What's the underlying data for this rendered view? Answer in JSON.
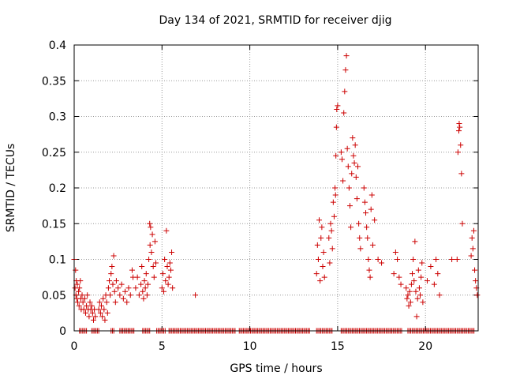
{
  "chart_data": {
    "type": "scatter",
    "title": "Day 134 of 2021, SRMTID for receiver djig",
    "xlabel": "GPS time / hours",
    "ylabel": "SRMTID / TECUs",
    "xlim": [
      0,
      23
    ],
    "ylim": [
      0,
      0.4
    ],
    "x_ticks": [
      0,
      5,
      10,
      15,
      20
    ],
    "x_tick_labels": [
      "0",
      "5",
      "10",
      "15",
      "20"
    ],
    "y_ticks": [
      0,
      0.05,
      0.1,
      0.15,
      0.2,
      0.25,
      0.3,
      0.35,
      0.4
    ],
    "y_tick_labels": [
      "0",
      "0.05",
      "0.1",
      "0.15",
      "0.2",
      "0.25",
      "0.3",
      "0.35",
      "0.4"
    ],
    "grid": true,
    "legend": "none",
    "marker": "plus",
    "color": "#cc0000",
    "series": [
      {
        "name": "SRMTID",
        "points": [
          [
            0.0,
            0.1
          ],
          [
            0.05,
            0.06
          ],
          [
            0.08,
            0.085
          ],
          [
            0.1,
            0.05
          ],
          [
            0.12,
            0.07
          ],
          [
            0.15,
            0.045
          ],
          [
            0.18,
            0.065
          ],
          [
            0.2,
            0.04
          ],
          [
            0.25,
            0.055
          ],
          [
            0.28,
            0.035
          ],
          [
            0.3,
            0.06
          ],
          [
            0.35,
            0.07
          ],
          [
            0.38,
            0.045
          ],
          [
            0.4,
            0.03
          ],
          [
            0.45,
            0.05
          ],
          [
            0.5,
            0.04
          ],
          [
            0.55,
            0.03
          ],
          [
            0.6,
            0.045
          ],
          [
            0.65,
            0.025
          ],
          [
            0.7,
            0.035
          ],
          [
            0.75,
            0.05
          ],
          [
            0.8,
            0.03
          ],
          [
            0.85,
            0.02
          ],
          [
            0.9,
            0.04
          ],
          [
            0.95,
            0.03
          ],
          [
            1.0,
            0.035
          ],
          [
            1.05,
            0.025
          ],
          [
            1.1,
            0.015
          ],
          [
            1.15,
            0.03
          ],
          [
            1.2,
            0.02
          ],
          [
            1.4,
            0.03
          ],
          [
            1.45,
            0.04
          ],
          [
            1.5,
            0.025
          ],
          [
            1.55,
            0.035
          ],
          [
            1.6,
            0.02
          ],
          [
            1.65,
            0.045
          ],
          [
            1.7,
            0.03
          ],
          [
            1.75,
            0.015
          ],
          [
            1.8,
            0.05
          ],
          [
            1.85,
            0.04
          ],
          [
            1.9,
            0.025
          ],
          [
            1.95,
            0.06
          ],
          [
            2.0,
            0.07
          ],
          [
            2.05,
            0.05
          ],
          [
            2.1,
            0.08
          ],
          [
            2.15,
            0.09
          ],
          [
            2.2,
            0.065
          ],
          [
            2.25,
            0.105
          ],
          [
            2.3,
            0.055
          ],
          [
            2.35,
            0.04
          ],
          [
            2.4,
            0.07
          ],
          [
            2.5,
            0.06
          ],
          [
            2.6,
            0.05
          ],
          [
            2.7,
            0.065
          ],
          [
            2.8,
            0.045
          ],
          [
            2.9,
            0.055
          ],
          [
            3.0,
            0.04
          ],
          [
            3.1,
            0.06
          ],
          [
            3.2,
            0.05
          ],
          [
            3.3,
            0.085
          ],
          [
            3.35,
            0.075
          ],
          [
            3.5,
            0.06
          ],
          [
            3.6,
            0.075
          ],
          [
            3.7,
            0.05
          ],
          [
            3.8,
            0.065
          ],
          [
            3.85,
            0.09
          ],
          [
            3.9,
            0.055
          ],
          [
            3.95,
            0.045
          ],
          [
            4.0,
            0.07
          ],
          [
            4.05,
            0.06
          ],
          [
            4.1,
            0.08
          ],
          [
            4.15,
            0.05
          ],
          [
            4.2,
            0.065
          ],
          [
            4.25,
            0.1
          ],
          [
            4.3,
            0.15
          ],
          [
            4.32,
            0.12
          ],
          [
            4.35,
            0.145
          ],
          [
            4.4,
            0.11
          ],
          [
            4.45,
            0.135
          ],
          [
            4.5,
            0.09
          ],
          [
            4.55,
            0.075
          ],
          [
            4.6,
            0.125
          ],
          [
            4.65,
            0.095
          ],
          [
            5.0,
            0.06
          ],
          [
            5.05,
            0.08
          ],
          [
            5.1,
            0.055
          ],
          [
            5.15,
            0.1
          ],
          [
            5.2,
            0.07
          ],
          [
            5.25,
            0.14
          ],
          [
            5.3,
            0.09
          ],
          [
            5.35,
            0.065
          ],
          [
            5.4,
            0.075
          ],
          [
            5.45,
            0.095
          ],
          [
            5.5,
            0.085
          ],
          [
            5.55,
            0.11
          ],
          [
            5.6,
            0.06
          ],
          [
            6.9,
            0.05
          ],
          [
            13.8,
            0.08
          ],
          [
            13.85,
            0.12
          ],
          [
            13.9,
            0.1
          ],
          [
            13.95,
            0.155
          ],
          [
            14.0,
            0.07
          ],
          [
            14.05,
            0.13
          ],
          [
            14.1,
            0.145
          ],
          [
            14.15,
            0.09
          ],
          [
            14.2,
            0.11
          ],
          [
            14.25,
            0.075
          ],
          [
            14.5,
            0.13
          ],
          [
            14.55,
            0.095
          ],
          [
            14.6,
            0.15
          ],
          [
            14.65,
            0.14
          ],
          [
            14.7,
            0.115
          ],
          [
            14.75,
            0.18
          ],
          [
            14.8,
            0.16
          ],
          [
            14.85,
            0.2
          ],
          [
            14.88,
            0.19
          ],
          [
            14.9,
            0.245
          ],
          [
            14.93,
            0.285
          ],
          [
            14.95,
            0.31
          ],
          [
            15.0,
            0.315
          ],
          [
            15.2,
            0.25
          ],
          [
            15.25,
            0.24
          ],
          [
            15.3,
            0.21
          ],
          [
            15.35,
            0.305
          ],
          [
            15.4,
            0.335
          ],
          [
            15.45,
            0.365
          ],
          [
            15.5,
            0.385
          ],
          [
            15.55,
            0.255
          ],
          [
            15.6,
            0.23
          ],
          [
            15.65,
            0.2
          ],
          [
            15.7,
            0.175
          ],
          [
            15.75,
            0.145
          ],
          [
            15.8,
            0.22
          ],
          [
            15.85,
            0.27
          ],
          [
            15.9,
            0.245
          ],
          [
            15.95,
            0.235
          ],
          [
            16.0,
            0.26
          ],
          [
            16.05,
            0.215
          ],
          [
            16.1,
            0.185
          ],
          [
            16.15,
            0.23
          ],
          [
            16.2,
            0.15
          ],
          [
            16.25,
            0.13
          ],
          [
            16.3,
            0.115
          ],
          [
            16.5,
            0.2
          ],
          [
            16.55,
            0.18
          ],
          [
            16.6,
            0.165
          ],
          [
            16.65,
            0.145
          ],
          [
            16.7,
            0.13
          ],
          [
            16.75,
            0.1
          ],
          [
            16.8,
            0.085
          ],
          [
            16.85,
            0.075
          ],
          [
            16.9,
            0.17
          ],
          [
            16.95,
            0.19
          ],
          [
            17.0,
            0.12
          ],
          [
            17.1,
            0.155
          ],
          [
            17.3,
            0.1
          ],
          [
            17.5,
            0.095
          ],
          [
            18.2,
            0.08
          ],
          [
            18.3,
            0.11
          ],
          [
            18.4,
            0.1
          ],
          [
            18.5,
            0.075
          ],
          [
            18.6,
            0.065
          ],
          [
            18.9,
            0.06
          ],
          [
            18.95,
            0.045
          ],
          [
            19.0,
            0.05
          ],
          [
            19.05,
            0.035
          ],
          [
            19.1,
            0.055
          ],
          [
            19.15,
            0.04
          ],
          [
            19.2,
            0.065
          ],
          [
            19.25,
            0.08
          ],
          [
            19.3,
            0.1
          ],
          [
            19.35,
            0.07
          ],
          [
            19.4,
            0.125
          ],
          [
            19.45,
            0.055
          ],
          [
            19.5,
            0.02
          ],
          [
            19.55,
            0.045
          ],
          [
            19.6,
            0.085
          ],
          [
            19.65,
            0.06
          ],
          [
            19.7,
            0.05
          ],
          [
            19.75,
            0.075
          ],
          [
            19.8,
            0.095
          ],
          [
            19.85,
            0.04
          ],
          [
            20.1,
            0.07
          ],
          [
            20.3,
            0.09
          ],
          [
            20.5,
            0.065
          ],
          [
            20.6,
            0.1
          ],
          [
            20.7,
            0.08
          ],
          [
            20.8,
            0.05
          ],
          [
            21.5,
            0.1
          ],
          [
            21.8,
            0.1
          ],
          [
            21.85,
            0.25
          ],
          [
            21.9,
            0.28
          ],
          [
            21.92,
            0.29
          ],
          [
            21.95,
            0.285
          ],
          [
            22.0,
            0.26
          ],
          [
            22.05,
            0.22
          ],
          [
            22.1,
            0.15
          ],
          [
            22.6,
            0.105
          ],
          [
            22.65,
            0.13
          ],
          [
            22.7,
            0.115
          ],
          [
            22.75,
            0.14
          ],
          [
            22.8,
            0.085
          ],
          [
            22.85,
            0.07
          ],
          [
            22.9,
            0.06
          ],
          [
            22.95,
            0.05
          ]
        ]
      }
    ],
    "zero_band": [
      [
        0.3,
        0.7
      ],
      [
        1.0,
        1.4
      ],
      [
        2.1,
        2.3
      ],
      [
        2.6,
        3.4
      ],
      [
        3.9,
        4.3
      ],
      [
        4.7,
        5.2
      ],
      [
        5.4,
        9.2
      ],
      [
        9.4,
        13.4
      ],
      [
        13.8,
        14.7
      ],
      [
        15.2,
        18.7
      ],
      [
        19.0,
        22.8
      ]
    ]
  }
}
